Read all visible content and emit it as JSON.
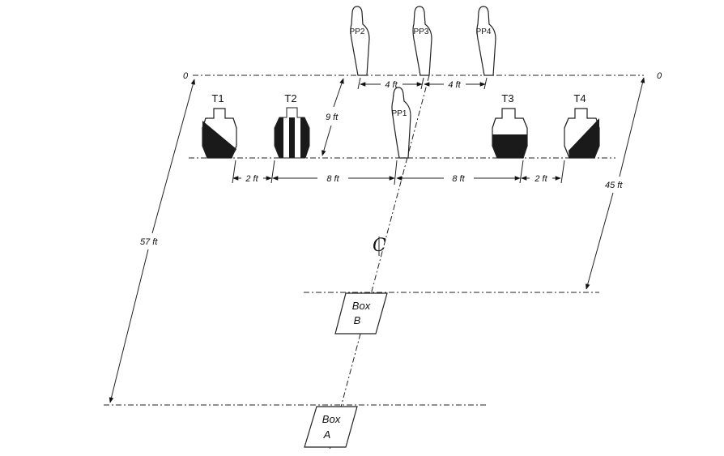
{
  "targets": [
    {
      "label": "T1",
      "pattern": "diagonal"
    },
    {
      "label": "T2",
      "pattern": "vertical-stripes"
    },
    {
      "label": "T3",
      "pattern": "bottom-half"
    },
    {
      "label": "T4",
      "pattern": "diagonal"
    }
  ],
  "no_shoots": [
    {
      "label": "PP1"
    },
    {
      "label": "PP2"
    },
    {
      "label": "PP3"
    },
    {
      "label": "PP4"
    }
  ],
  "dimensions": {
    "pp_gap_left": "4 ft",
    "pp_gap_right": "4 ft",
    "depth_back_row": "9 ft",
    "t1_t2_gap": "2 ft",
    "t2_center": "8 ft",
    "center_t3": "8 ft",
    "t3_t4_gap": "2 ft",
    "box_a_distance": "57 ft",
    "box_b_distance": "45 ft"
  },
  "zero_left": "0",
  "zero_right": "0",
  "centerline": "CL",
  "boxes": {
    "b_line1": "Box",
    "b_line2": "B",
    "a_line1": "Box",
    "a_line2": "A"
  },
  "colors": {
    "ink": "#1a1a1a",
    "background": "#ffffff"
  }
}
